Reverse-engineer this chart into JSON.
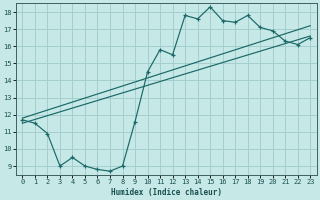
{
  "title": "",
  "xlabel": "Humidex (Indice chaleur)",
  "ylabel": "",
  "bg_color": "#c6e8e6",
  "grid_color": "#a4cece",
  "line_color": "#1a6868",
  "xlim": [
    -0.5,
    23.5
  ],
  "ylim": [
    8.5,
    18.5
  ],
  "xticks": [
    0,
    1,
    2,
    3,
    4,
    5,
    6,
    7,
    8,
    9,
    10,
    11,
    12,
    13,
    14,
    15,
    16,
    17,
    18,
    19,
    20,
    21,
    22,
    23
  ],
  "yticks": [
    9,
    10,
    11,
    12,
    13,
    14,
    15,
    16,
    17,
    18
  ],
  "curve1_x": [
    0,
    1,
    2,
    3,
    4,
    5,
    6,
    7,
    8,
    9,
    10,
    11,
    12,
    13,
    14,
    15,
    16,
    17,
    18,
    19,
    20,
    21,
    22,
    23
  ],
  "curve1_y": [
    11.7,
    11.5,
    10.9,
    9.0,
    9.5,
    9.0,
    8.8,
    8.7,
    9.0,
    11.6,
    14.5,
    15.8,
    15.5,
    17.8,
    17.6,
    18.3,
    17.5,
    17.4,
    17.8,
    17.1,
    16.9,
    16.3,
    16.1,
    16.5
  ],
  "line2_x": [
    0,
    23
  ],
  "line2_y": [
    11.8,
    17.2
  ],
  "line3_x": [
    0,
    23
  ],
  "line3_y": [
    11.5,
    16.6
  ],
  "marker": "+"
}
